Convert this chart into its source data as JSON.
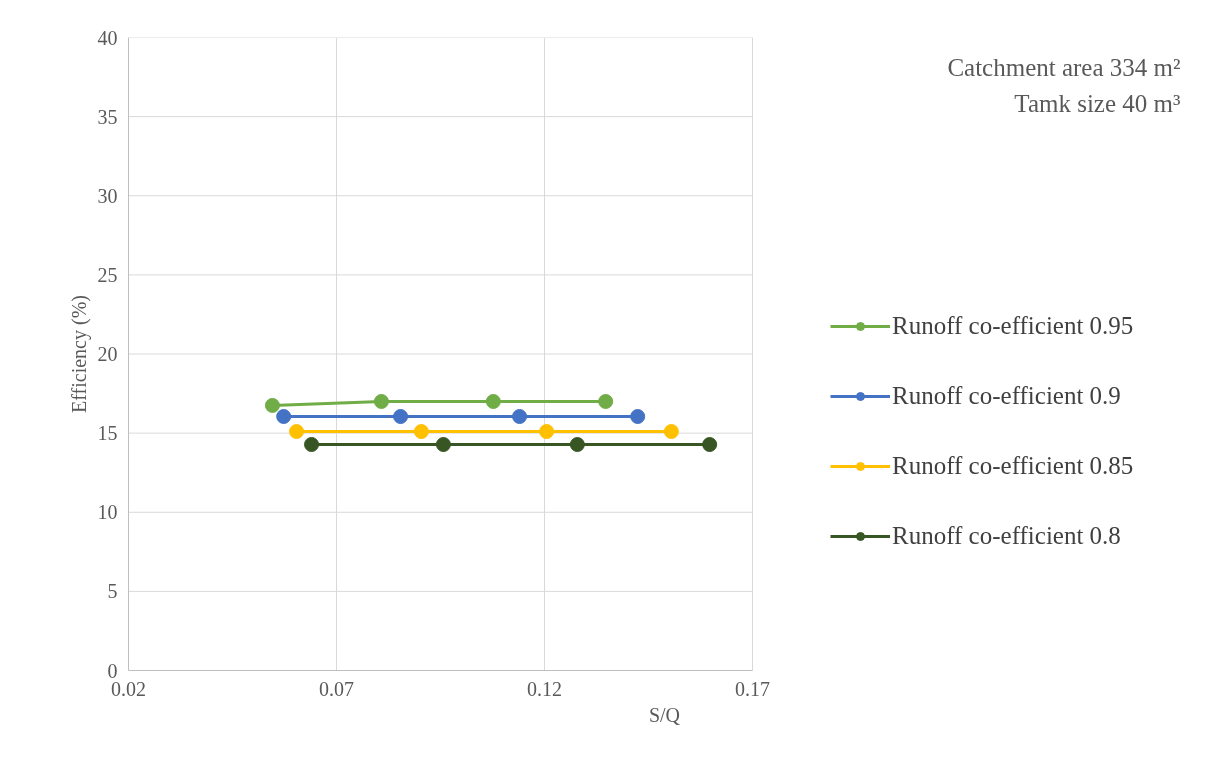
{
  "chart_data": {
    "type": "line",
    "xlabel": "S/Q",
    "ylabel": "Efficiency (%)",
    "xlim": [
      0.02,
      0.17
    ],
    "xticks": [
      0.02,
      0.07,
      0.12,
      0.17
    ],
    "ylim": [
      0,
      40
    ],
    "yticks": [
      0,
      5,
      10,
      15,
      20,
      25,
      30,
      35,
      40
    ],
    "grid": true,
    "legend": "right",
    "marker": "circle",
    "line_style": "solid",
    "annotations": [
      "Catchment area 334 m²",
      "Tamk size 40 m³"
    ],
    "series": [
      {
        "name": "Runoff co-efficient 0.95",
        "color": "#70ad47",
        "x": [
          0.0546,
          0.0808,
          0.1077,
          0.1347
        ],
        "values": [
          16.75,
          17.0,
          17.0,
          17.0
        ]
      },
      {
        "name": "Runoff co-efficient 0.9",
        "color": "#4472c4",
        "x": [
          0.0573,
          0.0854,
          0.114,
          0.1424
        ],
        "values": [
          16.05,
          16.05,
          16.05,
          16.05
        ]
      },
      {
        "name": "Runoff co-efficient 0.85",
        "color": "#ffc000",
        "x": [
          0.0604,
          0.0904,
          0.1205,
          0.1505
        ],
        "values": [
          15.1,
          15.1,
          15.1,
          15.1
        ]
      },
      {
        "name": "Runoff co-efficient 0.8",
        "color": "#375623",
        "x": [
          0.064,
          0.0957,
          0.1279,
          0.1597
        ],
        "values": [
          14.28,
          14.28,
          14.28,
          14.28
        ]
      }
    ]
  }
}
